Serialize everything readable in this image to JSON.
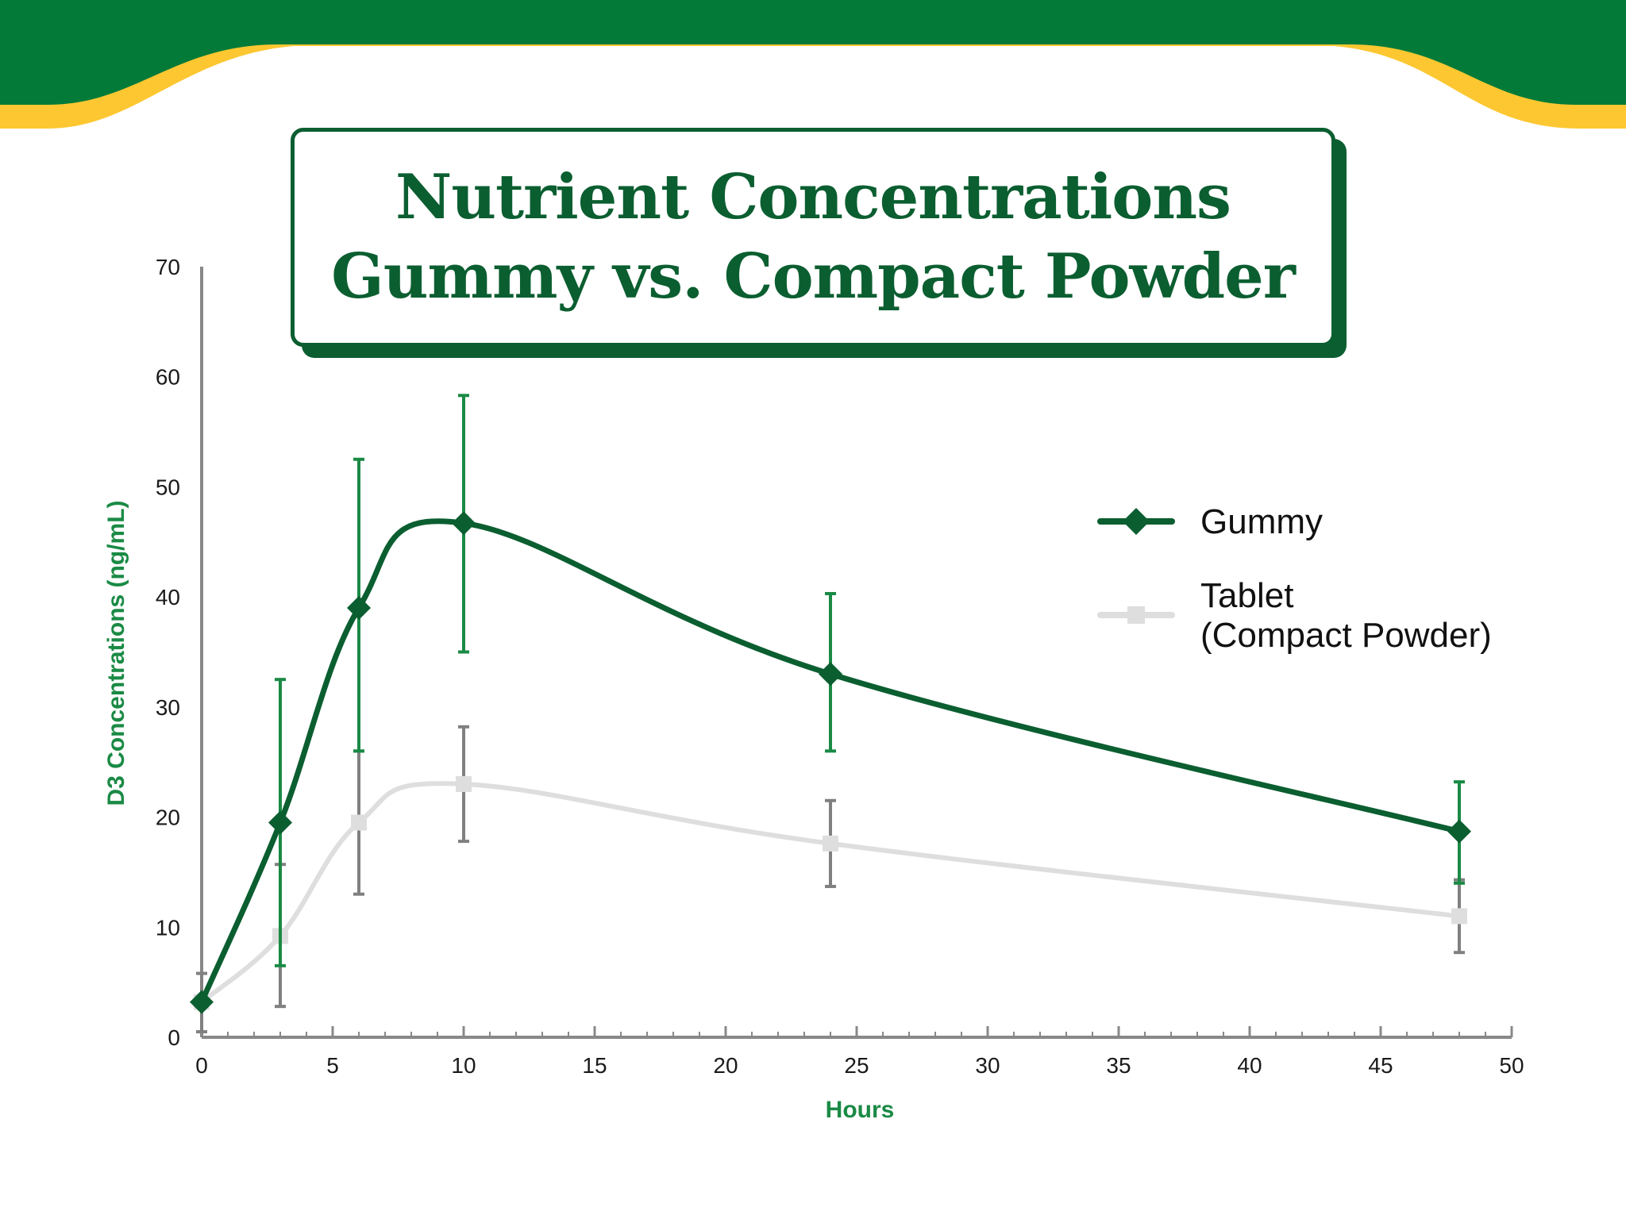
{
  "title": {
    "line1": "Nutrient Concentrations",
    "line2": "Gummy vs. Compact Powder"
  },
  "colors": {
    "banner_green": "#037a38",
    "banner_yellow": "#fdc731",
    "gummy": "#0b5e30",
    "gummy_error": "#1a8a45",
    "tablet": "#dedede",
    "tablet_error": "#808080",
    "axis": "#888888",
    "axis_title": "#1a8a45"
  },
  "legend": {
    "gummy": "Gummy",
    "tablet_line1": "Tablet",
    "tablet_line2": "(Compact Powder)"
  },
  "chart_data": {
    "type": "line",
    "xlabel": "Hours",
    "ylabel": "D3 Concentrations (ng/mL)",
    "xlim": [
      0,
      50
    ],
    "ylim": [
      0,
      70
    ],
    "xticks": [
      0,
      5,
      10,
      15,
      20,
      25,
      30,
      35,
      40,
      45,
      50
    ],
    "yticks": [
      0,
      10,
      20,
      30,
      40,
      50,
      60,
      70
    ],
    "grid": false,
    "legend_position": "right",
    "series": [
      {
        "name": "Gummy",
        "marker": "diamond",
        "points": [
          {
            "x": 0,
            "y": 3.2
          },
          {
            "x": 3,
            "y": 19.5,
            "err_low": 6.5,
            "err_high": 32.5
          },
          {
            "x": 6,
            "y": 39,
            "err_low": 26,
            "err_high": 52.5
          },
          {
            "x": 10,
            "y": 46.7,
            "err_low": 35,
            "err_high": 58.3
          },
          {
            "x": 24,
            "y": 33,
            "err_low": 26,
            "err_high": 40.3
          },
          {
            "x": 48,
            "y": 18.7,
            "err_low": 14,
            "err_high": 23.2
          }
        ]
      },
      {
        "name": "Tablet (Compact Powder)",
        "marker": "square",
        "points": [
          {
            "x": 0,
            "y": 3.2,
            "err_low": 0.5,
            "err_high": 5.8
          },
          {
            "x": 3,
            "y": 9.2,
            "err_low": 2.8,
            "err_high": 15.7
          },
          {
            "x": 6,
            "y": 19.5,
            "err_low": 13,
            "err_high": 26
          },
          {
            "x": 10,
            "y": 23,
            "err_low": 17.8,
            "err_high": 28.2
          },
          {
            "x": 24,
            "y": 17.6,
            "err_low": 13.7,
            "err_high": 21.5
          },
          {
            "x": 48,
            "y": 11,
            "err_low": 7.7,
            "err_high": 14.3
          }
        ]
      }
    ]
  }
}
